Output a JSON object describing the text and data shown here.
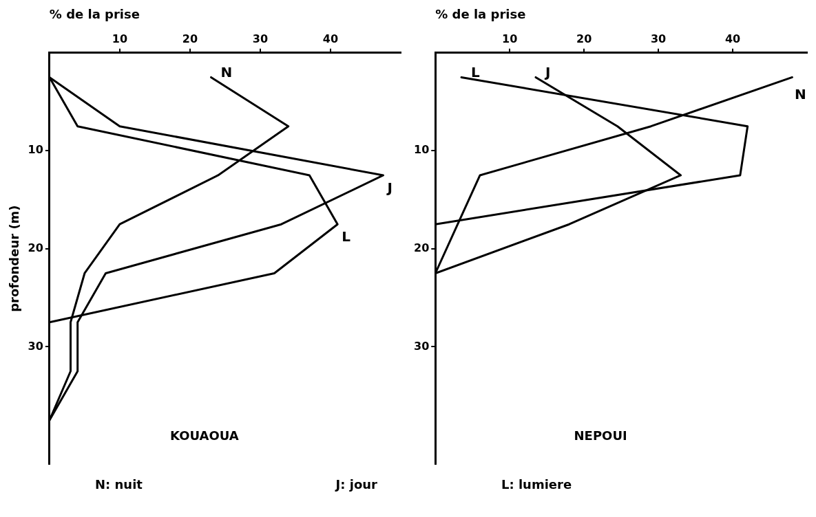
{
  "chart_data": [
    {
      "type": "line",
      "title": "KOUAOUA",
      "xlabel": "% de la prise",
      "ylabel": "profondeur (m)",
      "xlim": [
        0,
        50
      ],
      "ylim": [
        42,
        0
      ],
      "xticks": [
        10,
        20,
        30,
        40
      ],
      "yticks": [
        10,
        20,
        30
      ],
      "grid": false,
      "legend": false,
      "line_style": "solid",
      "annotations": [
        "N: nuit",
        "J: jour"
      ],
      "series": [
        {
          "name": "N",
          "color": "#000000",
          "x": [
            23,
            34,
            24,
            10,
            5,
            3,
            3,
            0
          ],
          "values": [
            2.5,
            7.5,
            12.5,
            17.5,
            22.5,
            27.5,
            32.5,
            37.5
          ]
        },
        {
          "name": "J",
          "color": "#000000",
          "x": [
            0,
            10,
            47.5,
            33,
            8,
            4,
            4,
            0
          ],
          "values": [
            2.5,
            7.5,
            12.5,
            17.5,
            22.5,
            27.5,
            32.5,
            37.5
          ]
        },
        {
          "name": "L",
          "color": "#000000",
          "x": [
            0,
            4,
            37,
            41,
            32,
            0
          ],
          "values": [
            2.5,
            7.5,
            12.5,
            17.5,
            22.5,
            27.5
          ]
        }
      ]
    },
    {
      "type": "line",
      "title": "NEPOUI",
      "xlabel": "% de la prise",
      "xlim": [
        0,
        50
      ],
      "ylim": [
        42,
        0
      ],
      "xticks": [
        10,
        20,
        30,
        40
      ],
      "yticks": [
        10,
        20,
        30
      ],
      "grid": false,
      "legend": false,
      "line_style": "solid",
      "annotations": [
        "L: lumiere"
      ],
      "series": [
        {
          "name": "L",
          "color": "#000000",
          "x": [
            3.5,
            42,
            41,
            0
          ],
          "values": [
            2.5,
            7.5,
            12.5,
            17.5
          ]
        },
        {
          "name": "J",
          "color": "#000000",
          "x": [
            13.5,
            24.5,
            33,
            18,
            0
          ],
          "values": [
            2.5,
            7.5,
            12.5,
            17.5,
            22.5
          ]
        },
        {
          "name": "N",
          "color": "#000000",
          "x": [
            48,
            29,
            6,
            3,
            0
          ],
          "values": [
            2.5,
            7.5,
            12.5,
            17.5,
            22.5
          ]
        }
      ]
    }
  ]
}
